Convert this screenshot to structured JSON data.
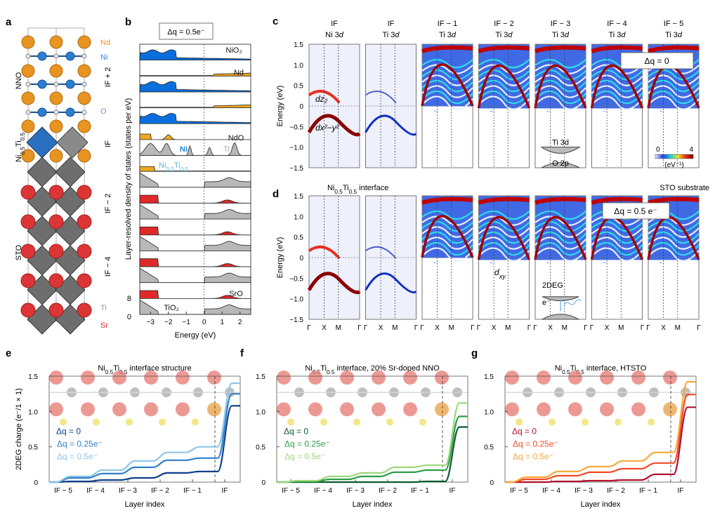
{
  "panels": {
    "a": {
      "label": "a",
      "side_labels": [
        "NNO",
        "Ni0.5Ti0.5",
        "STO"
      ],
      "layer_labels": [
        "IF + 2",
        "IF",
        "IF − 2",
        "IF − 4"
      ],
      "element_labels": [
        {
          "name": "Nd",
          "color": "#e8961e"
        },
        {
          "name": "Ni",
          "color": "#2a86d8"
        },
        {
          "name": "O",
          "color": "#8a7fe0"
        },
        {
          "name": "Ti",
          "color": "#999999"
        },
        {
          "name": "Sr",
          "color": "#e03030"
        }
      ]
    },
    "b": {
      "label": "b",
      "box_label": "Δq = 0.5e⁻",
      "ylabel": "Layer-resolved density of states (states per eV)",
      "xlabel": "Energy (eV)",
      "xticks": [
        "−3",
        "−2",
        "−1",
        "0",
        "1",
        "2"
      ],
      "yticks": [
        "8",
        "0"
      ],
      "layer_labels": [
        "NiO₂",
        "Nd",
        "NdO",
        "SrO",
        "TiO₂"
      ],
      "species_labels": {
        "ni": "Ni",
        "ti": "Ti",
        "niti": "Ni0.5Ti0.5"
      },
      "colors": {
        "ni": "#0a6fdc",
        "nd": "#f0a820",
        "ti": "#b8b8b8",
        "sr": "#e02828",
        "niti": "#7ac4e8"
      }
    },
    "c": {
      "label": "c",
      "ylabel": "Energy (eV)",
      "yticks": [
        "1.5",
        "1.0",
        "0.5",
        "0",
        "−0.5",
        "−1.0",
        "−1.5"
      ],
      "columns": [
        {
          "top": "IF",
          "bottom": "Ni 3d"
        },
        {
          "top": "IF",
          "bottom": "Ti 3d"
        },
        {
          "top": "IF − 1",
          "bottom": "Ti 3d"
        },
        {
          "top": "IF − 2",
          "bottom": "Ti 3d"
        },
        {
          "top": "IF − 3",
          "bottom": "Ti 3d"
        },
        {
          "top": "IF − 4",
          "bottom": "Ti 3d"
        },
        {
          "top": "IF − 5",
          "bottom": "Ti 3d"
        }
      ],
      "box_label": "Δq = 0",
      "orbital_labels": [
        "dz₂",
        "dx²−y²"
      ],
      "schematic": {
        "upper": "Ti 3d",
        "lower": "O 2p"
      },
      "colorbar": {
        "min": "0",
        "max": "4",
        "unit": "(eV⁻¹)"
      }
    },
    "d": {
      "label": "d",
      "title_left": "Ni0.5Ti0.5 interface",
      "title_right": "STO substrate",
      "ylabel": "Energy (eV)",
      "yticks": [
        "1.5",
        "1.0",
        "0.5",
        "0",
        "−0.5",
        "−1.0",
        "−1.5"
      ],
      "kpath": [
        "Γ",
        "X",
        "M",
        "Γ"
      ],
      "box_label": "Δq = 0.5 e⁻",
      "orbital_label": "dxy",
      "schematic": {
        "title": "2DEG",
        "electron": "e⁻"
      }
    }
  },
  "chart_data": [
    {
      "id": "e",
      "type": "line",
      "title": "Ni0.5Ti0.5 interface structure",
      "xlabel": "Layer index",
      "ylabel": "2DEG charge (e⁻/1 × 1)",
      "ylim": [
        0,
        1.5
      ],
      "yticks": [
        "0",
        "0.5",
        "1.0",
        "1.5"
      ],
      "categories": [
        "IF − 5",
        "IF − 4",
        "IF − 3",
        "IF − 2",
        "IF − 1",
        "IF"
      ],
      "series": [
        {
          "name": "Δq = 0",
          "color": "#0d3f8c",
          "values": [
            0.01,
            0.03,
            0.06,
            0.13,
            0.15,
            1.08
          ]
        },
        {
          "name": "Δq = 0.25e⁻",
          "color": "#2f7fc8",
          "values": [
            0.06,
            0.12,
            0.21,
            0.31,
            0.34,
            1.25
          ]
        },
        {
          "name": "Δq = 0.5e⁻",
          "color": "#8cc5ea",
          "values": [
            0.08,
            0.17,
            0.3,
            0.42,
            0.5,
            1.4
          ]
        }
      ]
    },
    {
      "id": "f",
      "type": "line",
      "title": "Ni0.5Ti0.5 interface, 20% Sr-doped NNO",
      "xlabel": "Layer index",
      "ylabel": "",
      "ylim": [
        0,
        1.5
      ],
      "yticks": [
        "0",
        "0.5",
        "1.0",
        "1.5"
      ],
      "categories": [
        "IF − 5",
        "IF − 4",
        "IF − 3",
        "IF − 2",
        "IF − 1",
        "IF"
      ],
      "series": [
        {
          "name": "Δq = 0",
          "color": "#0b5a2c",
          "values": [
            0.0,
            0.0,
            0.0,
            0.0,
            0.01,
            0.78
          ]
        },
        {
          "name": "Δq = 0.25e⁻",
          "color": "#2e9c48",
          "values": [
            0.01,
            0.04,
            0.08,
            0.14,
            0.17,
            0.93
          ]
        },
        {
          "name": "Δq = 0.5e⁻",
          "color": "#9ad87a",
          "values": [
            0.02,
            0.08,
            0.13,
            0.21,
            0.24,
            1.12
          ]
        }
      ]
    },
    {
      "id": "g",
      "type": "line",
      "title": "Ni0.5Ti0.5 interface, HTSTO",
      "xlabel": "Layer index",
      "ylabel": "",
      "ylim": [
        0,
        1.5
      ],
      "yticks": [
        "0",
        "0.5",
        "1.0",
        "1.5"
      ],
      "categories": [
        "IF − 5",
        "IF − 4",
        "IF − 3",
        "IF − 2",
        "IF − 1",
        "IF"
      ],
      "series": [
        {
          "name": "Δq = 0",
          "color": "#b0102e",
          "values": [
            0.0,
            0.01,
            0.02,
            0.03,
            0.11,
            1.06
          ]
        },
        {
          "name": "Δq = 0.25e⁻",
          "color": "#f04a28",
          "values": [
            0.04,
            0.09,
            0.14,
            0.19,
            0.27,
            1.24
          ]
        },
        {
          "name": "Δq = 0.5e⁻",
          "color": "#f8a838",
          "values": [
            0.07,
            0.15,
            0.22,
            0.3,
            0.42,
            1.42
          ]
        }
      ]
    }
  ]
}
